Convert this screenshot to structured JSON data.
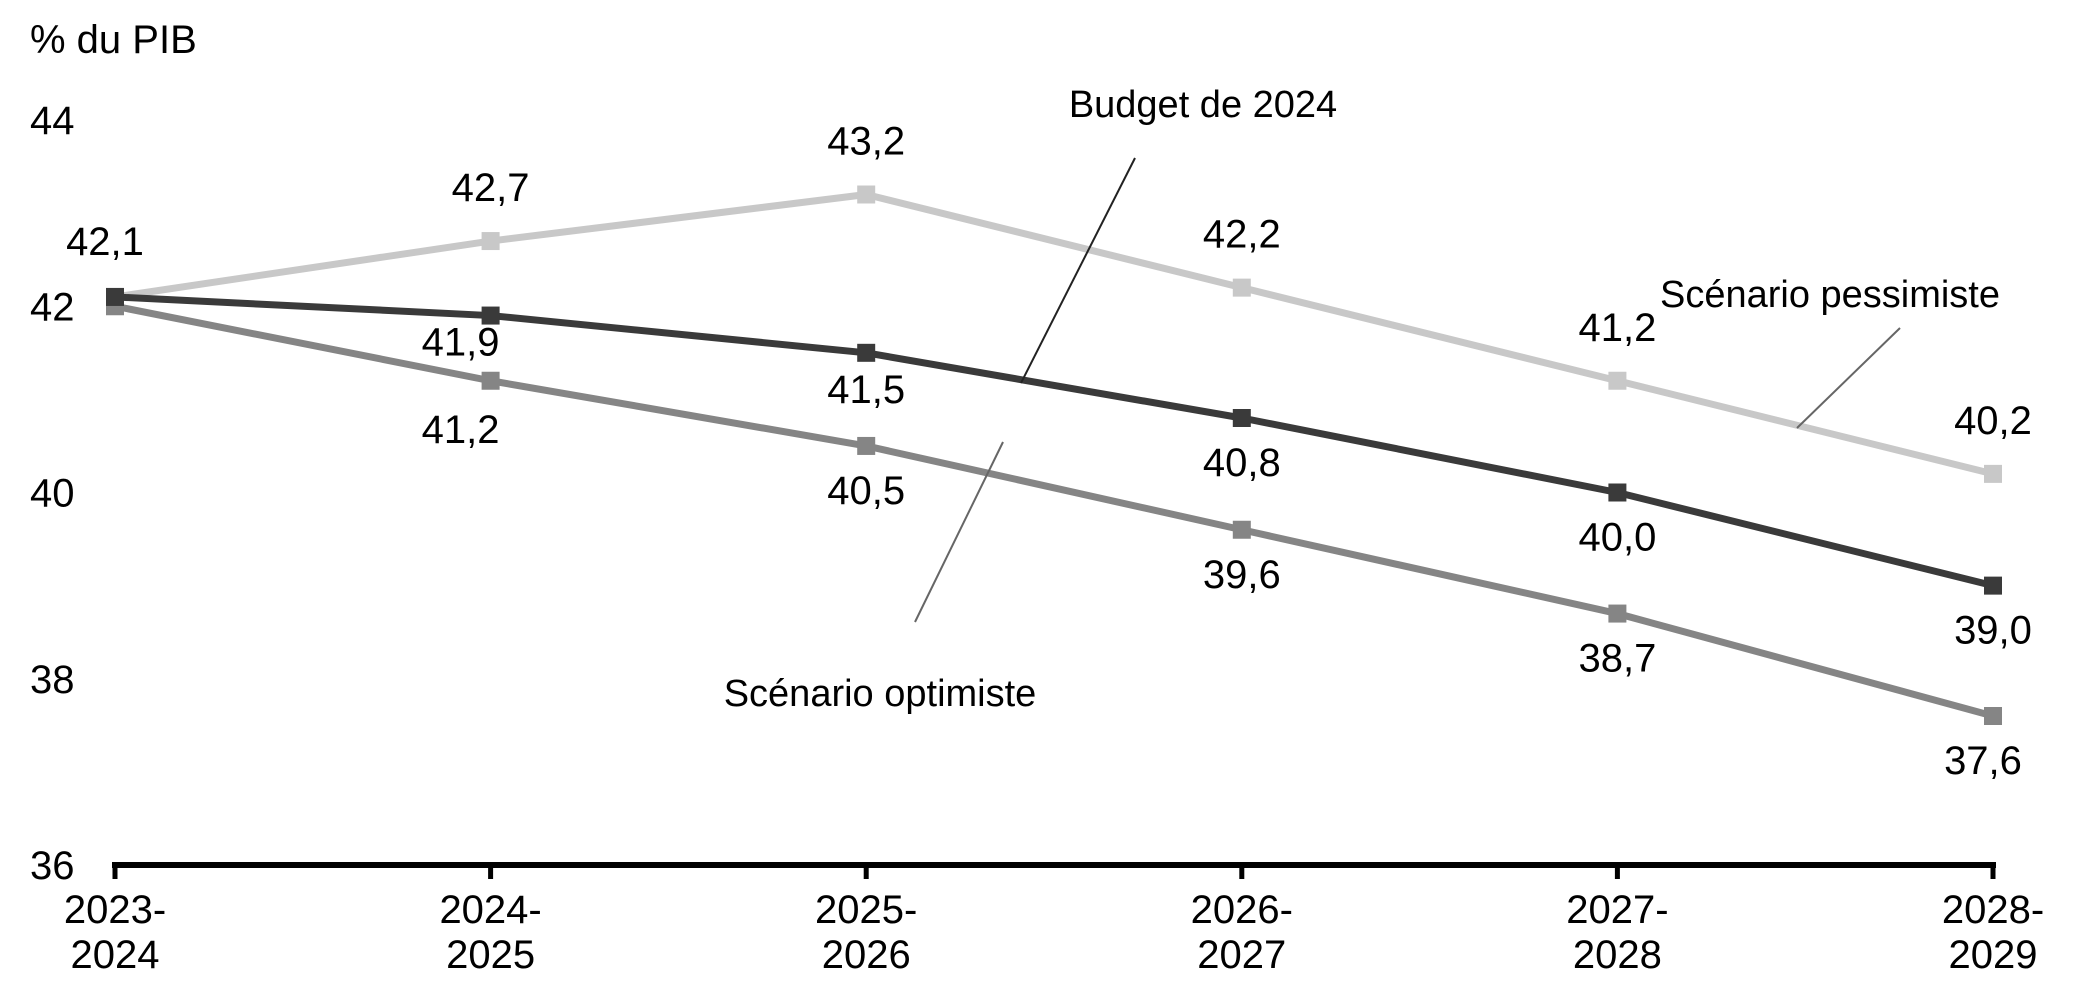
{
  "chart_data": {
    "type": "line",
    "ylabel": "% du PIB",
    "ylim": [
      36,
      44
    ],
    "yticks": [
      36,
      38,
      40,
      42,
      44
    ],
    "grid": false,
    "categories": [
      [
        "2023-",
        "2024"
      ],
      [
        "2024-",
        "2025"
      ],
      [
        "2025-",
        "2026"
      ],
      [
        "2026-",
        "2027"
      ],
      [
        "2027-",
        "2028"
      ],
      [
        "2028-",
        "2029"
      ]
    ],
    "series": [
      {
        "name": "Scénario pessimiste",
        "color": "#c8c8c8",
        "values": [
          42.1,
          42.7,
          43.2,
          42.2,
          41.2,
          40.2
        ],
        "labels": [
          "42,1",
          "42,7",
          "43,2",
          "42,2",
          "41,2",
          "40,2"
        ]
      },
      {
        "name": "Budget de 2024",
        "color": "#3a3a3a",
        "values": [
          42.1,
          41.9,
          41.5,
          40.8,
          40.0,
          39.0
        ],
        "labels": [
          "",
          "41,9",
          "41,5",
          "40,8",
          "40,0",
          "39,0"
        ]
      },
      {
        "name": "Scénario optimiste",
        "color": "#858585",
        "values": [
          42.0,
          41.2,
          40.5,
          39.6,
          38.7,
          37.6
        ],
        "labels": [
          "",
          "41,2",
          "40,5",
          "39,6",
          "38,7",
          "37,6"
        ]
      }
    ]
  }
}
